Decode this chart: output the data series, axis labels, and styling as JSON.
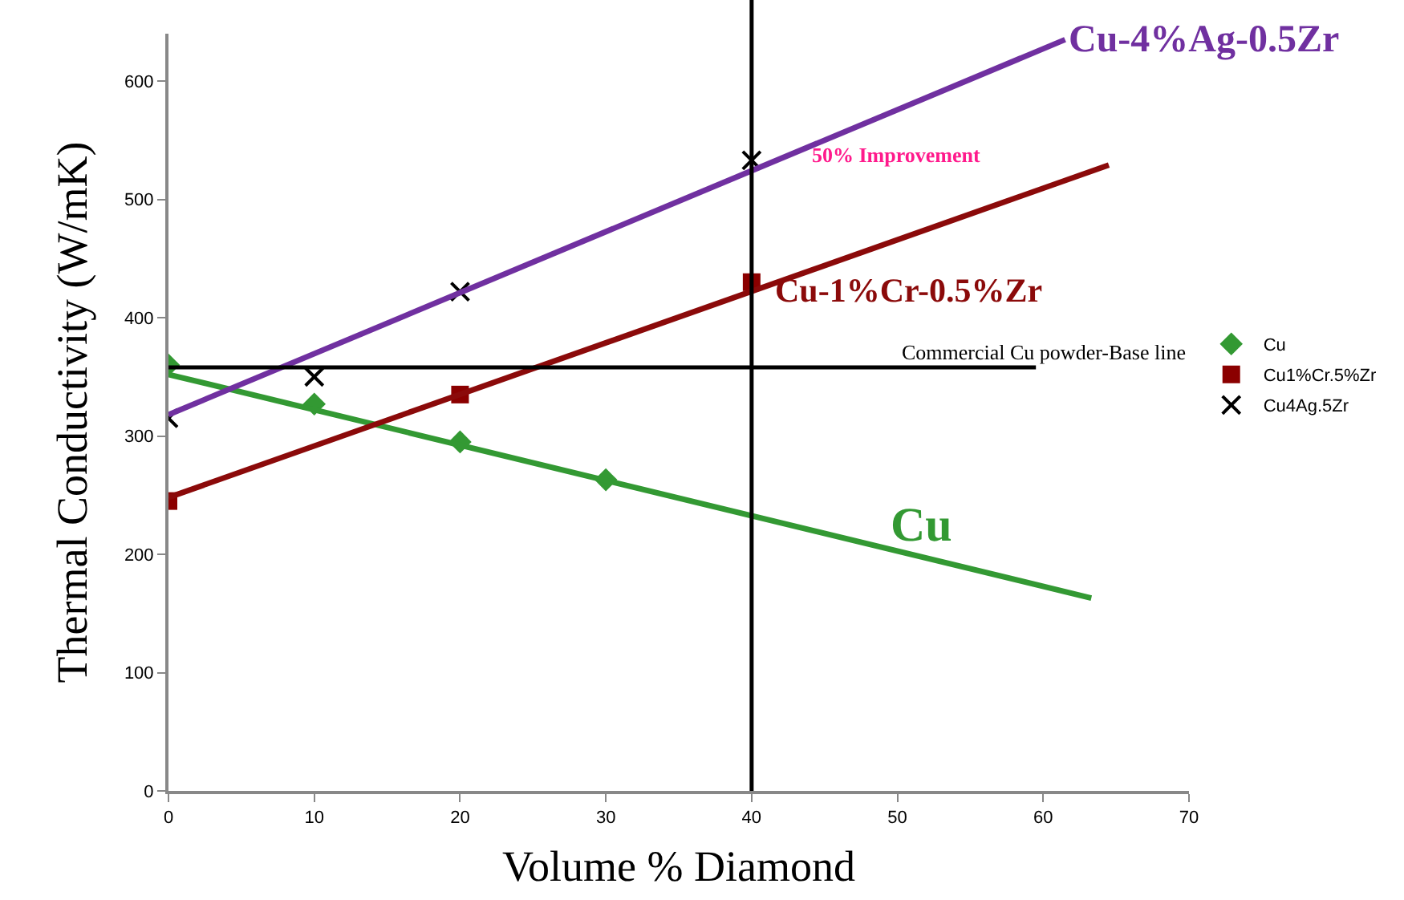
{
  "chart_data": {
    "type": "scatter",
    "xlabel": "Volume % Diamond",
    "ylabel": "Thermal Conductivity (W/mK)",
    "xlim": [
      0,
      70
    ],
    "xticks": [
      0,
      10,
      20,
      30,
      40,
      50,
      60,
      70
    ],
    "ylim": [
      0,
      640
    ],
    "yticks": [
      0,
      100,
      200,
      300,
      400,
      500,
      600
    ],
    "legend": "right",
    "series": [
      {
        "name": "Cu",
        "marker": "diamond",
        "color": "#339933",
        "x": [
          0,
          10,
          20,
          30
        ],
        "values": [
          360,
          327,
          295,
          263
        ]
      },
      {
        "name": "Cu1%Cr.5%Zr",
        "marker": "square",
        "color": "#8b0000",
        "x": [
          0,
          20,
          40
        ],
        "values": [
          245,
          335,
          430
        ]
      },
      {
        "name": "Cu4Ag.5Zr",
        "marker": "cross",
        "color": "#000000",
        "x": [
          0,
          10,
          20,
          40
        ],
        "values": [
          315,
          350,
          422,
          533
        ]
      },
      {
        "type": "line",
        "color": "#339933",
        "x": [
          0,
          63.3
        ],
        "values": [
          352,
          163
        ]
      },
      {
        "type": "line",
        "color": "#8b0a0a",
        "x": [
          0,
          64.5
        ],
        "values": [
          248,
          529
        ]
      },
      {
        "type": "line",
        "color": "#7030a0",
        "x": [
          0,
          61.5
        ],
        "values": [
          318,
          635
        ]
      }
    ],
    "ref_lines": [
      {
        "axis": "y",
        "value": 358,
        "label": "Commercial Cu powder-Base line",
        "color": "#000000"
      },
      {
        "axis": "x",
        "value": 40,
        "color": "#000000"
      }
    ],
    "annotations": [
      {
        "text": "Cu-4%Ag-0.5Zr",
        "x": 61.5,
        "y": 635
      },
      "Cu-1%Cr-0.5%Zr",
      "Cu",
      "50% Improvement"
    ]
  }
}
